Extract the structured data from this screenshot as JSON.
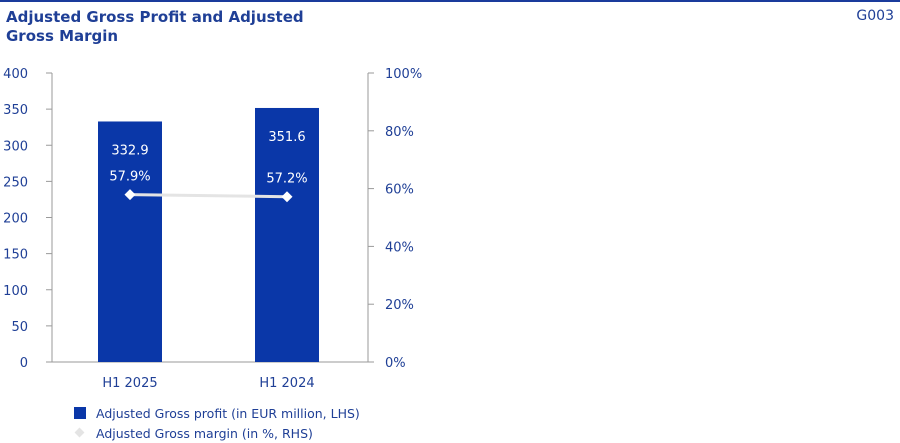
{
  "header": {
    "title": "Adjusted Gross Profit and Adjusted Gross Margin",
    "code": "G003"
  },
  "colors": {
    "bar": "#0a37a8",
    "line": "#e4e4e4",
    "text": "#1f3f96",
    "axis": "#9a9a9a"
  },
  "chart_data": {
    "type": "bar",
    "title": "Adjusted Gross Profit and Adjusted Gross Margin",
    "categories": [
      "H1 2025",
      "H1 2024"
    ],
    "y_left": {
      "ticks": [
        "0",
        "50",
        "100",
        "150",
        "200",
        "250",
        "300",
        "350",
        "400"
      ],
      "lim": [
        0,
        400
      ]
    },
    "y_right": {
      "ticks": [
        "0%",
        "20%",
        "40%",
        "60%",
        "80%",
        "100%"
      ],
      "lim": [
        0,
        100
      ]
    },
    "series": [
      {
        "name": "Adjusted Gross profit (in EUR million, LHS)",
        "type": "bar",
        "axis": "left",
        "values": [
          332.9,
          351.6
        ],
        "labels": [
          "332.9",
          "351.6"
        ]
      },
      {
        "name": "Adjusted Gross margin (in %, RHS)",
        "type": "line",
        "axis": "right",
        "values": [
          57.9,
          57.2
        ],
        "labels": [
          "57.9%",
          "57.2%"
        ]
      }
    ],
    "legend_position": "bottom-left",
    "grid": false
  }
}
